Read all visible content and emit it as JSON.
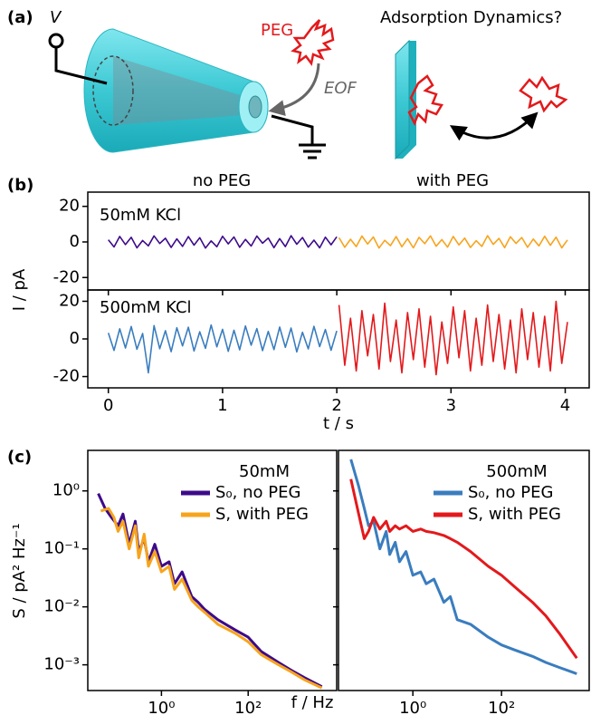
{
  "schematic": {
    "panel_label": "(a)",
    "voltage": "V",
    "polymer": "PEG",
    "flow": "EOF",
    "question": "Adsorption Dynamics?"
  },
  "chart_data": [
    {
      "type": "line",
      "panel_label": "(b)",
      "column_labels": [
        "no PEG",
        "with PEG"
      ],
      "annotation": "50mM KCl",
      "y_label": "I / pA",
      "xlim": [
        -0.18,
        4.21
      ],
      "ylim": [
        -27,
        28
      ],
      "xticks": [
        0,
        1,
        2,
        3,
        4
      ],
      "xtick_labels": false,
      "yticks": [
        -20,
        0,
        20
      ],
      "series": [
        {
          "color": "#3d0a8a",
          "x": [
            0,
            0.05,
            0.1,
            0.15,
            0.2,
            0.25,
            0.3,
            0.35,
            0.4,
            0.45,
            0.5,
            0.55,
            0.6,
            0.65,
            0.7,
            0.75,
            0.8,
            0.85,
            0.9,
            0.95,
            1,
            1.05,
            1.1,
            1.15,
            1.2,
            1.25,
            1.3,
            1.35,
            1.4,
            1.45,
            1.5,
            1.55,
            1.6,
            1.65,
            1.7,
            1.75,
            1.8,
            1.85,
            1.9,
            1.95,
            2
          ],
          "values": [
            1.2,
            -2.8,
            3.1,
            -1.5,
            2.6,
            -3.3,
            0.8,
            -2.2,
            3.4,
            -0.9,
            2.1,
            -3.1,
            1.7,
            -2.5,
            3.0,
            -1.8,
            2.4,
            -3.4,
            0.6,
            -2.7,
            3.2,
            -1.1,
            2.8,
            -3.0,
            1.4,
            -2.3,
            3.3,
            -0.7,
            2.2,
            -3.2,
            1.9,
            -2.6,
            3.5,
            -1.3,
            2.5,
            -2.9,
            1.0,
            -3.3,
            2.7,
            -1.6,
            2.9
          ]
        },
        {
          "color": "#f7a41d",
          "x": [
            2.02,
            2.07,
            2.12,
            2.17,
            2.22,
            2.27,
            2.32,
            2.37,
            2.42,
            2.47,
            2.52,
            2.57,
            2.62,
            2.67,
            2.72,
            2.77,
            2.82,
            2.87,
            2.92,
            2.97,
            3.02,
            3.07,
            3.12,
            3.17,
            3.22,
            3.27,
            3.32,
            3.37,
            3.42,
            3.47,
            3.52,
            3.57,
            3.62,
            3.67,
            3.72,
            3.77,
            3.82,
            3.87,
            3.92,
            3.97,
            4.02
          ],
          "values": [
            2.4,
            -3.0,
            1.5,
            -2.6,
            3.3,
            -1.2,
            2.8,
            -3.4,
            0.9,
            -2.1,
            3.0,
            -2.7,
            1.8,
            -3.3,
            2.6,
            -1.0,
            3.4,
            -2.4,
            1.3,
            -2.9,
            3.1,
            -1.7,
            2.2,
            -3.1,
            0.7,
            -2.5,
            3.5,
            -1.4,
            2.0,
            -3.2,
            2.9,
            -0.8,
            2.5,
            -3.0,
            1.6,
            -2.2,
            3.2,
            -1.9,
            2.7,
            -3.3,
            1.1
          ]
        }
      ]
    },
    {
      "type": "line",
      "annotation": "500mM KCl",
      "x_label": "t / s",
      "xlim": [
        -0.18,
        4.21
      ],
      "ylim": [
        -26,
        26
      ],
      "xticks": [
        0,
        1,
        2,
        3,
        4
      ],
      "yticks": [
        -20,
        0,
        20
      ],
      "series": [
        {
          "color": "#3a7dbf",
          "x": [
            0,
            0.05,
            0.1,
            0.15,
            0.2,
            0.25,
            0.3,
            0.35,
            0.4,
            0.45,
            0.5,
            0.55,
            0.6,
            0.65,
            0.7,
            0.75,
            0.8,
            0.85,
            0.9,
            0.95,
            1,
            1.05,
            1.1,
            1.15,
            1.2,
            1.25,
            1.3,
            1.35,
            1.4,
            1.45,
            1.5,
            1.55,
            1.6,
            1.65,
            1.7,
            1.75,
            1.8,
            1.85,
            1.9,
            1.95,
            2
          ],
          "values": [
            3.2,
            -6.1,
            5.4,
            -4.8,
            6.6,
            -5.5,
            2.9,
            -18,
            7.1,
            -5.2,
            4.4,
            -6.8,
            5.9,
            -3.7,
            6.2,
            -6.4,
            3.8,
            -5.0,
            7.4,
            -4.2,
            5.1,
            -6.6,
            4.6,
            -5.8,
            6.9,
            -3.3,
            5.5,
            -6.2,
            4.0,
            -5.7,
            6.3,
            -4.5,
            5.8,
            -6.9,
            3.5,
            -5.3,
            6.7,
            -4.1,
            5.0,
            -6.0,
            4.3
          ]
        },
        {
          "color": "#e3191c",
          "x": [
            2.02,
            2.07,
            2.12,
            2.17,
            2.22,
            2.27,
            2.32,
            2.37,
            2.42,
            2.47,
            2.52,
            2.57,
            2.62,
            2.67,
            2.72,
            2.77,
            2.82,
            2.87,
            2.92,
            2.97,
            3.02,
            3.07,
            3.12,
            3.17,
            3.22,
            3.27,
            3.32,
            3.37,
            3.42,
            3.47,
            3.52,
            3.57,
            3.62,
            3.67,
            3.72,
            3.77,
            3.82,
            3.87,
            3.92,
            3.97,
            4.02
          ],
          "values": [
            18,
            -14,
            11,
            -17,
            15,
            -9,
            13,
            -16,
            19,
            -12,
            10,
            -18,
            14,
            -11,
            16,
            -15,
            12,
            -19,
            9,
            -13,
            17,
            -10,
            15,
            -17,
            11,
            -14,
            18,
            -12,
            13,
            -16,
            10,
            -18,
            16,
            -11,
            14,
            -15,
            12,
            -17,
            20,
            -13,
            9
          ]
        }
      ]
    },
    {
      "type": "line",
      "panel_label": "(c)",
      "y_label": "S / pA² Hz⁻¹",
      "legend_title": "50mM",
      "legend": "upper right",
      "log_x": true,
      "log_y": true,
      "xlim": [
        0.02,
        11000
      ],
      "ylim": [
        0.00036,
        5.0
      ],
      "xticks": [
        {
          "value": 1,
          "label": "10⁰"
        },
        {
          "value": 100,
          "label": "10²"
        }
      ],
      "yticks": [
        {
          "value": 1,
          "label": "10⁰"
        },
        {
          "value": 0.1,
          "label": "10⁻¹"
        },
        {
          "value": 0.01,
          "label": "10⁻²"
        },
        {
          "value": 0.001,
          "label": "10⁻³"
        }
      ],
      "series": [
        {
          "name": "S₀, no PEG",
          "color": "#3d0a8a",
          "x": [
            0.035,
            0.05,
            0.07,
            0.1,
            0.13,
            0.18,
            0.25,
            0.3,
            0.4,
            0.5,
            0.7,
            1,
            1.5,
            2,
            3,
            5,
            7,
            10,
            20,
            50,
            100,
            200,
            500,
            1000,
            2000,
            5000
          ],
          "values": [
            0.9,
            0.5,
            0.35,
            0.25,
            0.4,
            0.12,
            0.3,
            0.09,
            0.15,
            0.06,
            0.12,
            0.05,
            0.06,
            0.025,
            0.04,
            0.015,
            0.012,
            0.009,
            0.006,
            0.004,
            0.003,
            0.0017,
            0.0011,
            0.0008,
            0.0006,
            0.00042
          ]
        },
        {
          "name": "S, with PEG",
          "color": "#f7a41d",
          "x": [
            0.04,
            0.06,
            0.08,
            0.1,
            0.13,
            0.18,
            0.25,
            0.3,
            0.4,
            0.5,
            0.7,
            1,
            1.5,
            2,
            3,
            5,
            7,
            10,
            20,
            50,
            100,
            200,
            500,
            1000,
            2000,
            5000
          ],
          "values": [
            0.45,
            0.5,
            0.35,
            0.2,
            0.3,
            0.1,
            0.25,
            0.07,
            0.18,
            0.05,
            0.09,
            0.04,
            0.05,
            0.02,
            0.03,
            0.013,
            0.01,
            0.008,
            0.005,
            0.0035,
            0.0025,
            0.0015,
            0.001,
            0.00075,
            0.00055,
            0.0004
          ]
        }
      ]
    },
    {
      "type": "line",
      "x_label": "f / Hz",
      "legend_title": "500mM",
      "legend": "upper right",
      "log_x": true,
      "log_y": true,
      "xlim": [
        0.021,
        9500
      ],
      "ylim": [
        0.00036,
        5.0
      ],
      "ytick_labels": false,
      "xticks": [
        {
          "value": 1,
          "label": "10⁰"
        },
        {
          "value": 100,
          "label": "10²"
        }
      ],
      "yticks": [
        1,
        0.1,
        0.01,
        0.001
      ],
      "series": [
        {
          "name": "S₀, no PEG",
          "color": "#3a7dbf",
          "x": [
            0.04,
            0.06,
            0.08,
            0.1,
            0.13,
            0.18,
            0.25,
            0.3,
            0.4,
            0.5,
            0.7,
            1,
            1.5,
            2,
            3,
            5,
            7,
            10,
            20,
            50,
            100,
            200,
            500,
            1000,
            2000,
            5000
          ],
          "values": [
            3.5,
            1.2,
            0.5,
            0.25,
            0.3,
            0.1,
            0.2,
            0.08,
            0.13,
            0.06,
            0.09,
            0.035,
            0.04,
            0.025,
            0.03,
            0.012,
            0.015,
            0.006,
            0.005,
            0.003,
            0.0022,
            0.0018,
            0.0014,
            0.0011,
            0.0009,
            0.0007
          ]
        },
        {
          "name": "S, with PEG",
          "color": "#e3191c",
          "x": [
            0.04,
            0.06,
            0.08,
            0.1,
            0.13,
            0.18,
            0.25,
            0.3,
            0.4,
            0.5,
            0.7,
            1,
            1.5,
            2,
            3,
            5,
            7,
            10,
            20,
            50,
            100,
            200,
            500,
            1000,
            2000,
            5000
          ],
          "values": [
            1.6,
            0.4,
            0.15,
            0.2,
            0.35,
            0.22,
            0.3,
            0.2,
            0.25,
            0.22,
            0.25,
            0.2,
            0.22,
            0.2,
            0.19,
            0.17,
            0.15,
            0.13,
            0.09,
            0.05,
            0.035,
            0.022,
            0.012,
            0.007,
            0.0035,
            0.0013
          ]
        }
      ]
    }
  ]
}
